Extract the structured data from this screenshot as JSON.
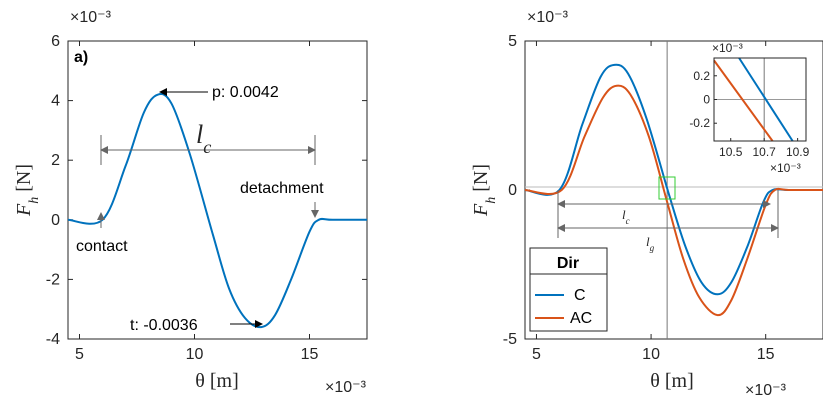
{
  "chart_data": [
    {
      "type": "line",
      "panel_label": "a)",
      "xlabel": "θ [m]",
      "ylabel": "F_h [N]",
      "x_multiplier": "×10⁻³",
      "y_multiplier": "×10⁻³",
      "xlim": [
        4.5,
        17.5
      ],
      "ylim": [
        -4,
        6
      ],
      "x_ticks": [
        5,
        10,
        15
      ],
      "y_ticks": [
        -4,
        -2,
        0,
        2,
        4,
        6
      ],
      "x_tick_labels": [
        "5",
        "10",
        "15"
      ],
      "y_tick_labels": [
        "-4",
        "-2",
        "0",
        "2",
        "4",
        "6"
      ],
      "grid": false,
      "series": [
        {
          "color": "#0072BD",
          "x": [
            4.5,
            6.0,
            7.0,
            7.8,
            8.4,
            9.0,
            9.8,
            10.8,
            11.5,
            12.2,
            12.9,
            13.5,
            14.2,
            15.0,
            15.4,
            16.0,
            17.5
          ],
          "y": [
            0,
            0,
            1.8,
            3.6,
            4.2,
            3.9,
            2.2,
            -0.5,
            -2.3,
            -3.3,
            -3.6,
            -3.2,
            -2.0,
            -0.4,
            0,
            0,
            0
          ]
        }
      ],
      "annotations": {
        "peak": "p: 0.0042",
        "trough": "t: -0.0036",
        "contact": "contact",
        "detachment": "detachment",
        "lc": "l_c"
      }
    },
    {
      "type": "line",
      "xlabel": "θ [m]",
      "ylabel": "F_h [N]",
      "x_multiplier": "×10⁻³",
      "y_multiplier": "×10⁻³",
      "xlim": [
        4.5,
        17.5
      ],
      "ylim": [
        -5,
        5
      ],
      "x_ticks": [
        5,
        10,
        15
      ],
      "y_ticks": [
        -5,
        0,
        5
      ],
      "x_tick_labels": [
        "5",
        "10",
        "15"
      ],
      "y_tick_labels": [
        "-5",
        "0",
        "5"
      ],
      "grid": false,
      "vertical_line_x": 10.7,
      "legend": {
        "title": "Dir",
        "placement": "bottom-left"
      },
      "series": [
        {
          "name": "C",
          "color": "#0072BD",
          "x": [
            4.5,
            6.0,
            7.0,
            7.8,
            8.4,
            9.0,
            9.8,
            10.8,
            11.5,
            12.2,
            12.9,
            13.5,
            14.2,
            14.9,
            15.3,
            16.0,
            17.5
          ],
          "y": [
            0,
            0,
            2.2,
            3.8,
            4.2,
            3.9,
            2.4,
            -0.2,
            -1.9,
            -3.1,
            -3.5,
            -3.1,
            -1.9,
            -0.4,
            0,
            0,
            0
          ]
        },
        {
          "name": "AC",
          "color": "#D95319",
          "x": [
            4.5,
            6.1,
            7.1,
            7.9,
            8.5,
            9.1,
            9.9,
            10.7,
            11.4,
            12.1,
            12.9,
            13.5,
            14.2,
            15.0,
            15.4,
            16.0,
            17.5
          ],
          "y": [
            0,
            0,
            1.8,
            3.1,
            3.5,
            3.2,
            1.8,
            -0.4,
            -2.3,
            -3.6,
            -4.2,
            -3.7,
            -2.3,
            -0.5,
            0,
            0,
            0
          ]
        }
      ],
      "annotations": {
        "lc": "l_c",
        "lg": "l_g"
      },
      "inset": {
        "xlim": [
          10.4,
          10.95
        ],
        "ylim": [
          -0.35,
          0.35
        ],
        "x_ticks": [
          10.5,
          10.7,
          10.9
        ],
        "y_ticks": [
          -0.2,
          0,
          0.2
        ],
        "x_tick_labels": [
          "10.5",
          "10.7",
          "10.9"
        ],
        "y_tick_labels": [
          "-0.2",
          "0",
          "0.2"
        ],
        "x_multiplier": "×10⁻³",
        "y_multiplier": "×10⁻³",
        "vertical_line_x": 10.7,
        "series": [
          {
            "name": "C",
            "color": "#0072BD",
            "x": [
              10.55,
              10.87
            ],
            "y": [
              0.35,
              -0.35
            ]
          },
          {
            "name": "AC",
            "color": "#D95319",
            "x": [
              10.4,
              10.75
            ],
            "y": [
              0.33,
              -0.35
            ]
          }
        ]
      }
    }
  ]
}
